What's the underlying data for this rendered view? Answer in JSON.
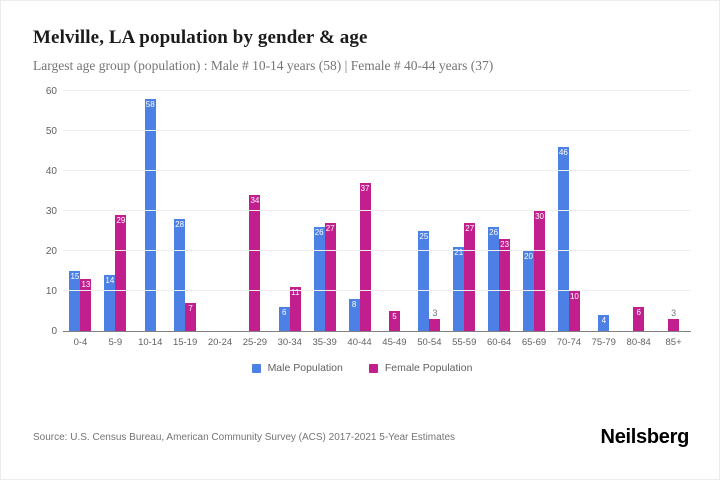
{
  "header": {
    "title": "Melville, LA population by gender & age",
    "subtitle": "Largest age group (population) : Male # 10-14 years (58) | Female # 40-44 years (37)"
  },
  "chart_data": {
    "type": "bar",
    "title": "Melville, LA population by gender & age",
    "xlabel": "",
    "ylabel": "",
    "categories": [
      "0-4",
      "5-9",
      "10-14",
      "15-19",
      "20-24",
      "25-29",
      "30-34",
      "35-39",
      "40-44",
      "45-49",
      "50-54",
      "55-59",
      "60-64",
      "65-69",
      "70-74",
      "75-79",
      "80-84",
      "85+"
    ],
    "series": [
      {
        "name": "Male Population",
        "color": "#4d80e4",
        "values": [
          15,
          14,
          58,
          28,
          0,
          0,
          6,
          26,
          8,
          0,
          25,
          21,
          26,
          20,
          46,
          4,
          0,
          0
        ]
      },
      {
        "name": "Female Population",
        "color": "#c21f8e",
        "values": [
          13,
          29,
          0,
          7,
          0,
          34,
          11,
          27,
          37,
          5,
          3,
          27,
          23,
          30,
          10,
          0,
          6,
          3
        ]
      }
    ],
    "ylim": [
      0,
      60
    ],
    "yticks": [
      0,
      10,
      20,
      30,
      40,
      50,
      60
    ],
    "grid": true,
    "legend_position": "bottom",
    "data_label_outside_below": 4
  },
  "footer": {
    "source": "Source: U.S. Census Bureau, American Community Survey (ACS) 2017-2021 5-Year Estimates",
    "brand": "Neilsberg"
  }
}
